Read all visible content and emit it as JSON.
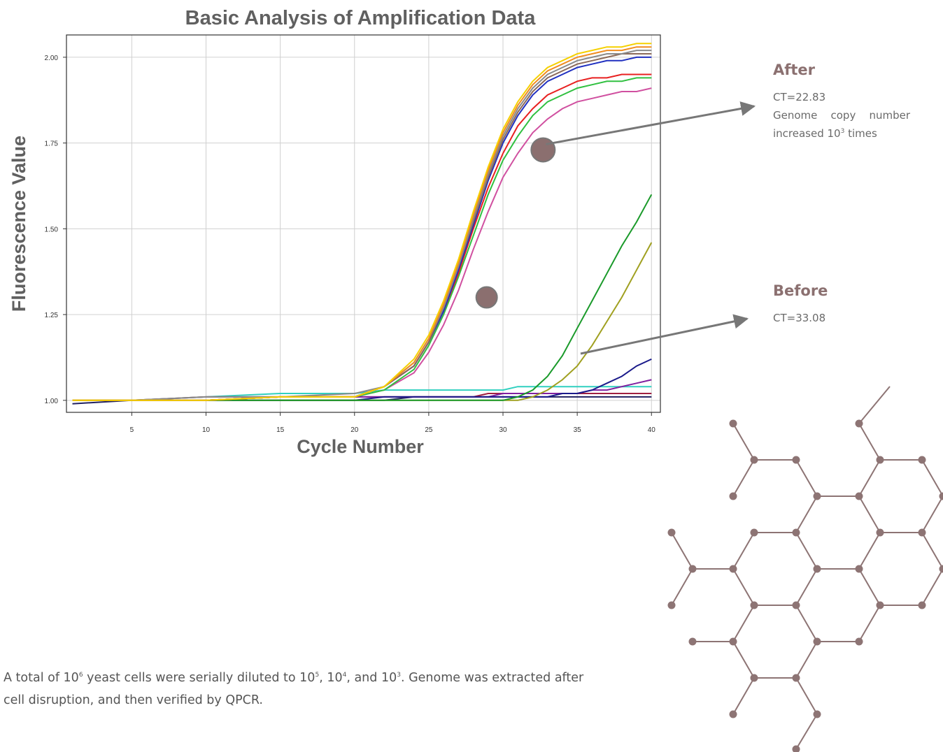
{
  "chart_data": {
    "type": "line",
    "title": "Basic Analysis of Amplification Data",
    "x_label": "Cycle Number",
    "y_label": "Fluorescence Value",
    "x": [
      1,
      5,
      10,
      15,
      20,
      22,
      24,
      25,
      26,
      27,
      28,
      29,
      30,
      31,
      32,
      33,
      34,
      35,
      36,
      37,
      38,
      39,
      40
    ],
    "series": [
      {
        "color": "#30d0c0",
        "values": [
          1.0,
          1.0,
          1.01,
          1.02,
          1.02,
          1.03,
          1.03,
          1.03,
          1.03,
          1.03,
          1.03,
          1.03,
          1.03,
          1.04,
          1.04,
          1.04,
          1.04,
          1.04,
          1.04,
          1.04,
          1.04,
          1.04,
          1.04
        ]
      },
      {
        "color": "#202060",
        "values": [
          0.99,
          1.0,
          1.0,
          1.0,
          1.0,
          1.0,
          1.01,
          1.01,
          1.01,
          1.01,
          1.01,
          1.01,
          1.01,
          1.01,
          1.01,
          1.01,
          1.01,
          1.01,
          1.01,
          1.01,
          1.01,
          1.01,
          1.01
        ]
      },
      {
        "color": "#a02040",
        "values": [
          1.0,
          1.0,
          1.01,
          1.01,
          1.01,
          1.01,
          1.01,
          1.01,
          1.01,
          1.01,
          1.01,
          1.02,
          1.02,
          1.02,
          1.02,
          1.02,
          1.02,
          1.02,
          1.02,
          1.02,
          1.02,
          1.02,
          1.02
        ]
      },
      {
        "color": "#8020a0",
        "values": [
          1.0,
          1.0,
          1.0,
          1.01,
          1.01,
          1.01,
          1.01,
          1.01,
          1.01,
          1.01,
          1.01,
          1.01,
          1.02,
          1.02,
          1.02,
          1.02,
          1.02,
          1.02,
          1.03,
          1.03,
          1.04,
          1.05,
          1.06
        ]
      },
      {
        "color": "#1a1a8a",
        "values": [
          1.0,
          1.0,
          1.0,
          1.0,
          1.0,
          1.01,
          1.01,
          1.01,
          1.01,
          1.01,
          1.01,
          1.01,
          1.01,
          1.01,
          1.01,
          1.01,
          1.02,
          1.02,
          1.03,
          1.05,
          1.07,
          1.1,
          1.12
        ]
      },
      {
        "color": "#a0a020",
        "values": [
          1.0,
          1.0,
          1.0,
          1.0,
          1.0,
          1.0,
          1.0,
          1.0,
          1.0,
          1.0,
          1.0,
          1.0,
          1.0,
          1.0,
          1.01,
          1.03,
          1.06,
          1.1,
          1.16,
          1.23,
          1.3,
          1.38,
          1.46
        ]
      },
      {
        "color": "#1a9a2a",
        "values": [
          1.0,
          1.0,
          1.0,
          1.0,
          1.0,
          1.0,
          1.0,
          1.0,
          1.0,
          1.0,
          1.0,
          1.0,
          1.0,
          1.01,
          1.03,
          1.07,
          1.13,
          1.21,
          1.29,
          1.37,
          1.45,
          1.52,
          1.6
        ]
      },
      {
        "color": "#d050a0",
        "values": [
          1.0,
          1.0,
          1.0,
          1.01,
          1.01,
          1.03,
          1.08,
          1.14,
          1.22,
          1.32,
          1.44,
          1.55,
          1.65,
          1.72,
          1.78,
          1.82,
          1.85,
          1.87,
          1.88,
          1.89,
          1.9,
          1.9,
          1.91
        ]
      },
      {
        "color": "#30c040",
        "values": [
          1.0,
          1.0,
          1.0,
          1.01,
          1.01,
          1.03,
          1.09,
          1.16,
          1.25,
          1.36,
          1.48,
          1.6,
          1.7,
          1.77,
          1.83,
          1.87,
          1.89,
          1.91,
          1.92,
          1.93,
          1.93,
          1.94,
          1.94
        ]
      },
      {
        "color": "#e82020",
        "values": [
          1.0,
          1.0,
          1.0,
          1.01,
          1.01,
          1.04,
          1.1,
          1.17,
          1.26,
          1.37,
          1.5,
          1.62,
          1.72,
          1.8,
          1.85,
          1.89,
          1.91,
          1.93,
          1.94,
          1.94,
          1.95,
          1.95,
          1.95
        ]
      },
      {
        "color": "#2030c0",
        "values": [
          1.0,
          1.0,
          1.0,
          1.01,
          1.01,
          1.04,
          1.1,
          1.17,
          1.26,
          1.38,
          1.51,
          1.64,
          1.75,
          1.83,
          1.89,
          1.93,
          1.95,
          1.97,
          1.98,
          1.99,
          1.99,
          2.0,
          2.0
        ]
      },
      {
        "color": "#8b6a5a",
        "values": [
          1.0,
          1.0,
          1.0,
          1.01,
          1.01,
          1.04,
          1.1,
          1.17,
          1.27,
          1.39,
          1.52,
          1.65,
          1.76,
          1.84,
          1.9,
          1.94,
          1.96,
          1.98,
          1.99,
          2.0,
          2.01,
          2.01,
          2.01
        ]
      },
      {
        "color": "#8a8a8a",
        "values": [
          1.0,
          1.0,
          1.01,
          1.01,
          1.02,
          1.04,
          1.11,
          1.18,
          1.27,
          1.39,
          1.53,
          1.66,
          1.77,
          1.85,
          1.91,
          1.95,
          1.97,
          1.99,
          2.0,
          2.01,
          2.01,
          2.02,
          2.02
        ]
      },
      {
        "color": "#f08c20",
        "values": [
          1.0,
          1.0,
          1.0,
          1.01,
          1.01,
          1.04,
          1.11,
          1.18,
          1.28,
          1.4,
          1.54,
          1.67,
          1.78,
          1.86,
          1.92,
          1.96,
          1.98,
          2.0,
          2.01,
          2.02,
          2.02,
          2.03,
          2.03
        ]
      },
      {
        "color": "#f5d000",
        "values": [
          1.0,
          1.0,
          1.0,
          1.01,
          1.01,
          1.04,
          1.12,
          1.19,
          1.29,
          1.41,
          1.55,
          1.68,
          1.79,
          1.87,
          1.93,
          1.97,
          1.99,
          2.01,
          2.02,
          2.03,
          2.03,
          2.04,
          2.04
        ]
      }
    ],
    "xlim": [
      0.6,
      40.6
    ],
    "ylim": [
      0.965,
      2.065
    ],
    "xticks": [
      5,
      10,
      15,
      20,
      25,
      30,
      35,
      40
    ],
    "yticks": [
      {
        "value": 1,
        "label": "1.00"
      },
      {
        "value": 1.25,
        "label": "1.25"
      },
      {
        "value": 1.5,
        "label": "1.50"
      },
      {
        "value": 1.75,
        "label": "1.75"
      },
      {
        "value": 2,
        "label": "2.00"
      }
    ],
    "grid": true,
    "markers": [
      {
        "x": 32.7,
        "y": 1.73,
        "color": "#8b6f6f"
      },
      {
        "x": 28.9,
        "y": 1.3,
        "color": "#8b6f6f"
      }
    ]
  },
  "annotations": [
    {
      "title": "After",
      "ct": "CT=22.83",
      "note": "Genome copy number increased 10",
      "sup": "3",
      "note_end": " times"
    },
    {
      "title": "Before",
      "ct": "CT=33.08"
    }
  ],
  "caption": [
    "A total of 10",
    "6",
    " yeast cells were serially diluted to 10",
    "5",
    ", 10",
    "4",
    ", and 10",
    "3",
    ". Genome was extracted after cell disruption, and then verified by QPCR."
  ]
}
